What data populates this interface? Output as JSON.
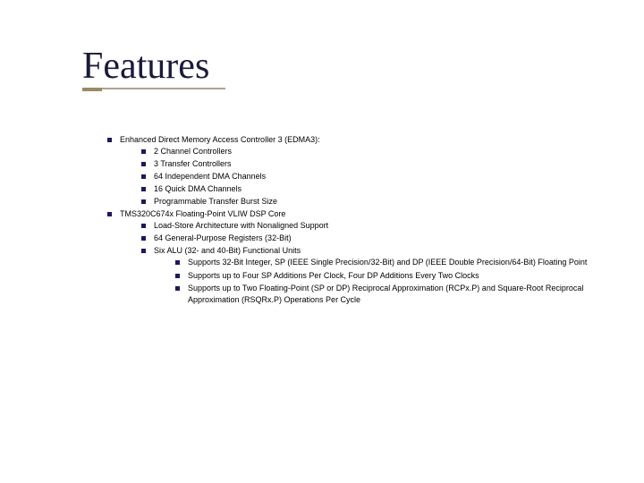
{
  "title": "Features",
  "colors": {
    "title_color": "#1a1a3a",
    "underline_color": "#b0a090",
    "accent_color": "#9b8a62",
    "bullet_color": "#1a1a5a",
    "text_color": "#000000",
    "background": "#ffffff"
  },
  "typography": {
    "title_font": "Georgia",
    "title_size_pt": 32,
    "body_font": "Verdana",
    "body_size_pt": 7
  },
  "items": [
    {
      "text": "Enhanced Direct Memory Access Controller 3 (EDMA3):",
      "children": [
        {
          "text": "2 Channel Controllers"
        },
        {
          "text": "3 Transfer Controllers"
        },
        {
          "text": "64 Independent DMA Channels"
        },
        {
          "text": "16 Quick DMA Channels"
        },
        {
          "text": "Programmable Transfer Burst Size"
        }
      ]
    },
    {
      "text": "TMS320C674x Floating-Point VLIW DSP Core",
      "children": [
        {
          "text": "Load-Store Architecture with Nonaligned Support"
        },
        {
          "text": "64 General-Purpose Registers (32-Bit)"
        },
        {
          "text": "Six ALU (32- and 40-Bit) Functional Units",
          "children": [
            {
              "text": "Supports 32-Bit Integer, SP (IEEE Single Precision/32-Bit) and DP (IEEE Double Precision/64-Bit) Floating Point"
            },
            {
              "text": "Supports up to Four SP Additions Per Clock, Four DP Additions Every Two Clocks"
            },
            {
              "text": "Supports up to Two Floating-Point (SP or DP) Reciprocal Approximation (RCPx.P) and Square-Root Reciprocal Approximation (RSQRx.P) Operations Per Cycle"
            }
          ]
        }
      ]
    }
  ]
}
